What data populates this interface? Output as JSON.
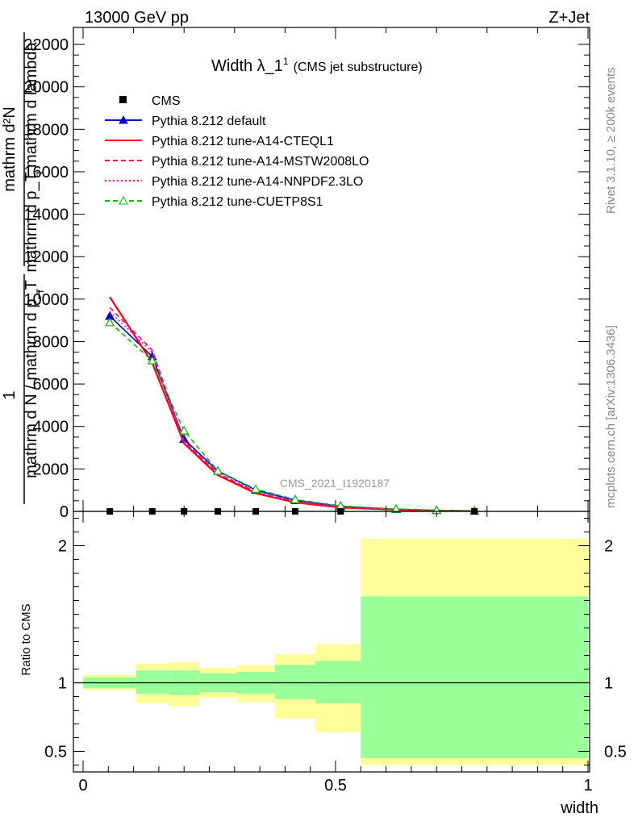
{
  "header": {
    "left": "13000 GeV pp",
    "right": "Z+Jet"
  },
  "side_labels": {
    "rivet": "Rivet 3.1.10, ≥ 200k events",
    "mcplots": "mcplots.cern.ch [arXiv:1306.3436]"
  },
  "watermark": "CMS_2021_I1920187",
  "chart_data": [
    {
      "type": "line",
      "title_main": "Width λ_1",
      "title_sup": "1",
      "title_suffix": "(CMS jet substructure)",
      "ylabel_numerator": "mathrm d²N",
      "ylabel_denominator": "mathrm d p_T mathrm d lambda",
      "ylabel_sub": "T",
      "ylabel_frac_num": "1",
      "ylabel_frac_den": "mathrm d N / mathrm d p_T",
      "xlim": [
        0,
        1
      ],
      "ylim": [
        0,
        22800
      ],
      "y_ticks": [
        0,
        2000,
        4000,
        6000,
        8000,
        10000,
        12000,
        14000,
        16000,
        18000,
        20000,
        22000
      ],
      "y_ticks_label": [
        "0",
        "2000",
        "4000",
        "6000",
        "8000",
        "10000",
        "12000",
        "14000",
        "16000",
        "18000",
        "20000",
        "22000"
      ],
      "x_ticks": [
        0,
        0.5,
        1
      ],
      "bin_centers": [
        0.053,
        0.137,
        0.2,
        0.267,
        0.342,
        0.42,
        0.51,
        0.775
      ],
      "data_name": "CMS",
      "data_values": [
        0,
        0,
        0,
        0,
        0,
        0,
        0,
        0
      ],
      "series": [
        {
          "name": "Pythia 8.212 default",
          "color": "#0000cc",
          "style": "solid",
          "marker": "triangle",
          "x": [
            0.053,
            0.137,
            0.2,
            0.267,
            0.342,
            0.42,
            0.51,
            0.62,
            0.7,
            0.775
          ],
          "values": [
            9200,
            7300,
            3400,
            1900,
            1000,
            520,
            230,
            100,
            50,
            20
          ]
        },
        {
          "name": "Pythia 8.212 tune-A14-CTEQL1",
          "color": "#ff0000",
          "style": "solid",
          "marker": "none",
          "x": [
            0.053,
            0.137,
            0.2,
            0.267,
            0.342,
            0.42,
            0.51,
            0.62,
            0.7,
            0.775
          ],
          "values": [
            10100,
            7000,
            3200,
            1700,
            850,
            420,
            180,
            80,
            40,
            15
          ]
        },
        {
          "name": "Pythia 8.212 tune-A14-MSTW2008LO",
          "color": "#ff0066",
          "style": "dashed",
          "marker": "none",
          "x": [
            0.053,
            0.137,
            0.2,
            0.267,
            0.342,
            0.42,
            0.51,
            0.62,
            0.7,
            0.775
          ],
          "values": [
            9600,
            7600,
            3300,
            1800,
            900,
            460,
            200,
            90,
            45,
            18
          ]
        },
        {
          "name": "Pythia 8.212 tune-A14-NNPDF2.3LO",
          "color": "#ff00cc",
          "style": "dotted",
          "marker": "none",
          "x": [
            0.053,
            0.137,
            0.2,
            0.267,
            0.342,
            0.42,
            0.51,
            0.62,
            0.7,
            0.775
          ],
          "values": [
            9400,
            7500,
            3300,
            1800,
            920,
            470,
            210,
            95,
            48,
            19
          ]
        },
        {
          "name": "Pythia 8.212 tune-CUETP8S1",
          "color": "#00bb00",
          "style": "dashed",
          "marker": "triangle-open",
          "x": [
            0.053,
            0.137,
            0.2,
            0.267,
            0.342,
            0.42,
            0.51,
            0.62,
            0.7,
            0.775
          ],
          "values": [
            8900,
            7100,
            3800,
            1900,
            1050,
            560,
            260,
            110,
            55,
            22
          ]
        }
      ]
    },
    {
      "type": "area",
      "ylabel": "Ratio to CMS",
      "xlabel": "width",
      "xlim": [
        0,
        1
      ],
      "ylim": [
        0.35,
        2.25
      ],
      "y_ticks": [
        0.5,
        1,
        2
      ],
      "y_ticks_label": [
        "0.5",
        "1",
        "2"
      ],
      "x_ticks": [
        0,
        0.5,
        1
      ],
      "x_ticks_label": [
        "0",
        "0.5",
        "1"
      ],
      "reference_line": 1,
      "bin_edges": [
        0,
        0.105,
        0.17,
        0.23,
        0.305,
        0.38,
        0.46,
        0.55,
        1
      ],
      "band_stat_low": [
        0.96,
        0.92,
        0.91,
        0.93,
        0.92,
        0.88,
        0.85,
        0.45
      ],
      "band_stat_high": [
        1.04,
        1.09,
        1.09,
        1.07,
        1.08,
        1.13,
        1.16,
        1.63
      ],
      "band_tot_low": [
        0.95,
        0.85,
        0.83,
        0.89,
        0.86,
        0.74,
        0.64,
        0.4
      ],
      "band_tot_high": [
        1.06,
        1.14,
        1.15,
        1.11,
        1.13,
        1.21,
        1.28,
        2.05
      ],
      "stat_color": "#99ff99",
      "tot_color": "#ffff99"
    }
  ]
}
